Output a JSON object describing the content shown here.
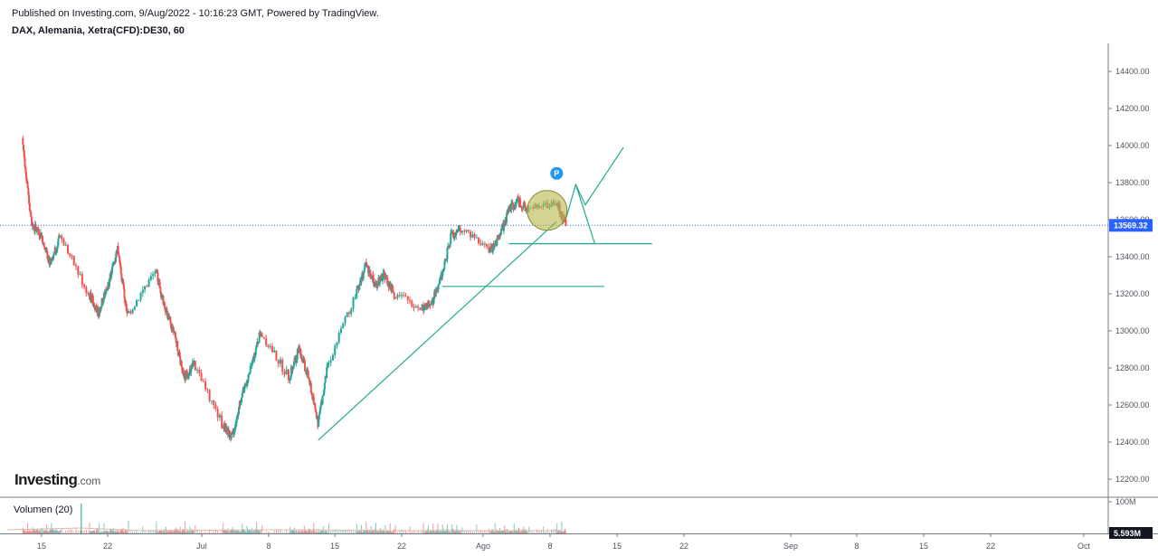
{
  "header": {
    "published": "Published on Investing.com, 9/Aug/2022 - 10:16:23 GMT, Powered by TradingView.",
    "symbol": "DAX, Alemania, Xetra(CFD):DE30, 60"
  },
  "logo": {
    "name": "Investing",
    "suffix": ".com"
  },
  "volume_pane": {
    "label": "Volumen (20)",
    "axis_label": "100M",
    "last_badge": "5.593M"
  },
  "colors": {
    "up": "#26a69a",
    "down": "#ef5350",
    "drawing": "#22ab94",
    "badge": "#2962ff",
    "marker": "#2196f3",
    "circle_fill": "#b5b54a"
  },
  "chart_data": {
    "type": "candlestick",
    "interval": "60",
    "y_axis": {
      "ticks": [
        "14400.00",
        "14200.00",
        "14000.00",
        "13800.00",
        "13600.00",
        "13400.00",
        "13200.00",
        "13000.00",
        "12800.00",
        "12600.00",
        "12400.00",
        "12200.00"
      ],
      "last_price_label": "13569.32",
      "last_price": 13569.32
    },
    "x_axis": {
      "ticks": [
        "15",
        "22",
        "Jul",
        "8",
        "15",
        "22",
        "Ago",
        "8",
        "15",
        "22",
        "Sep",
        "8",
        "15",
        "22",
        "Oct"
      ]
    },
    "price_path": [
      {
        "date": "2022-06-13",
        "value": 14040
      },
      {
        "date": "2022-06-14",
        "value": 13570
      },
      {
        "date": "2022-06-15",
        "value": 13520
      },
      {
        "date": "2022-06-16",
        "value": 13350
      },
      {
        "date": "2022-06-17",
        "value": 13520
      },
      {
        "date": "2022-06-20",
        "value": 13200
      },
      {
        "date": "2022-06-21",
        "value": 13100
      },
      {
        "date": "2022-06-22",
        "value": 13250
      },
      {
        "date": "2022-06-23",
        "value": 13450
      },
      {
        "date": "2022-06-24",
        "value": 13080
      },
      {
        "date": "2022-06-27",
        "value": 13320
      },
      {
        "date": "2022-06-28",
        "value": 13120
      },
      {
        "date": "2022-06-29",
        "value": 12970
      },
      {
        "date": "2022-06-30",
        "value": 12750
      },
      {
        "date": "2022-07-01",
        "value": 12820
      },
      {
        "date": "2022-07-04",
        "value": 12500
      },
      {
        "date": "2022-07-05",
        "value": 12420
      },
      {
        "date": "2022-07-06",
        "value": 12650
      },
      {
        "date": "2022-07-07",
        "value": 12800
      },
      {
        "date": "2022-07-08",
        "value": 13000
      },
      {
        "date": "2022-07-11",
        "value": 12750
      },
      {
        "date": "2022-07-12",
        "value": 12900
      },
      {
        "date": "2022-07-13",
        "value": 12750
      },
      {
        "date": "2022-07-14",
        "value": 12500
      },
      {
        "date": "2022-07-15",
        "value": 12800
      },
      {
        "date": "2022-07-18",
        "value": 13200
      },
      {
        "date": "2022-07-19",
        "value": 13350
      },
      {
        "date": "2022-07-20",
        "value": 13250
      },
      {
        "date": "2022-07-21",
        "value": 13300
      },
      {
        "date": "2022-07-22",
        "value": 13200
      },
      {
        "date": "2022-07-25",
        "value": 13130
      },
      {
        "date": "2022-07-26",
        "value": 13160
      },
      {
        "date": "2022-07-27",
        "value": 13300
      },
      {
        "date": "2022-07-28",
        "value": 13520
      },
      {
        "date": "2022-07-29",
        "value": 13550
      },
      {
        "date": "2022-08-01",
        "value": 13430
      },
      {
        "date": "2022-08-02",
        "value": 13500
      },
      {
        "date": "2022-08-03",
        "value": 13650
      },
      {
        "date": "2022-08-04",
        "value": 13700
      },
      {
        "date": "2022-08-05",
        "value": 13650
      },
      {
        "date": "2022-08-08",
        "value": 13700
      },
      {
        "date": "2022-08-09",
        "value": 13569.32
      }
    ],
    "drawings": [
      {
        "type": "trendline",
        "from": {
          "date": "2022-07-14",
          "value": 12410
        },
        "to": {
          "date": "2022-08-08",
          "value": 13590
        }
      },
      {
        "type": "horizontal",
        "date_from": "2022-08-03",
        "date_to": "2022-08-18",
        "value": 13470
      },
      {
        "type": "horizontal",
        "date_from": "2022-07-27",
        "date_to": "2022-08-13",
        "value": 13240
      },
      {
        "type": "zigzag",
        "points": [
          {
            "date": "2022-08-09",
            "value": 13610
          },
          {
            "date": "2022-08-10",
            "value": 13790
          },
          {
            "date": "2022-08-11",
            "value": 13680
          },
          {
            "date": "2022-08-15",
            "value": 13990
          }
        ]
      },
      {
        "type": "drop",
        "from": {
          "date": "2022-08-10",
          "value": 13790
        },
        "to": {
          "date": "2022-08-12",
          "value": 13470
        }
      },
      {
        "type": "circle",
        "center": {
          "date": "2022-08-07",
          "value": 13650
        }
      },
      {
        "type": "marker",
        "label": "P",
        "at": {
          "date": "2022-08-08",
          "value": 13850
        }
      }
    ]
  }
}
